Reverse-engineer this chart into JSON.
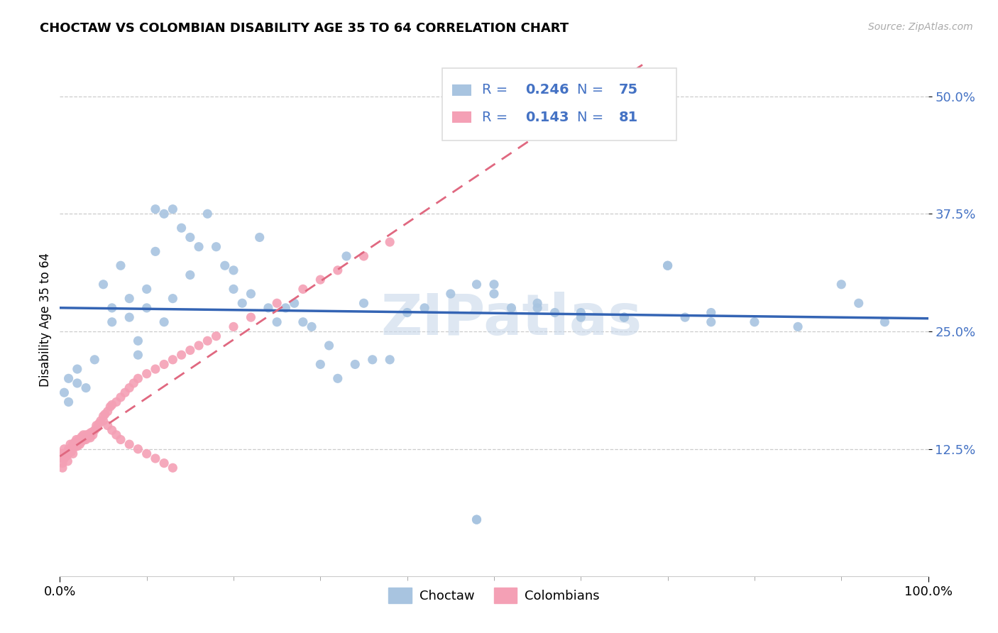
{
  "title": "CHOCTAW VS COLOMBIAN DISABILITY AGE 35 TO 64 CORRELATION CHART",
  "source": "Source: ZipAtlas.com",
  "ylabel": "Disability Age 35 to 64",
  "y_ticks": [
    0.125,
    0.25,
    0.375,
    0.5
  ],
  "y_tick_labels": [
    "12.5%",
    "25.0%",
    "37.5%",
    "50.0%"
  ],
  "x_range": [
    0.0,
    1.0
  ],
  "y_range": [
    -0.01,
    0.535
  ],
  "choctaw_R": 0.246,
  "choctaw_N": 75,
  "colombian_R": 0.143,
  "colombian_N": 81,
  "choctaw_color": "#a8c4e0",
  "colombian_color": "#f4a0b5",
  "choctaw_line_color": "#3464b4",
  "colombian_line_color": "#e06880",
  "legend_text_color": "#4472c4",
  "watermark_color": "#c8d8ea",
  "choctaw_x": [
    0.005,
    0.01,
    0.01,
    0.02,
    0.02,
    0.03,
    0.04,
    0.05,
    0.06,
    0.06,
    0.07,
    0.08,
    0.08,
    0.09,
    0.09,
    0.1,
    0.1,
    0.11,
    0.11,
    0.12,
    0.12,
    0.13,
    0.13,
    0.14,
    0.15,
    0.15,
    0.16,
    0.17,
    0.18,
    0.19,
    0.2,
    0.2,
    0.21,
    0.22,
    0.23,
    0.24,
    0.25,
    0.26,
    0.27,
    0.28,
    0.29,
    0.3,
    0.31,
    0.32,
    0.33,
    0.34,
    0.35,
    0.36,
    0.38,
    0.4,
    0.42,
    0.45,
    0.48,
    0.5,
    0.52,
    0.55,
    0.57,
    0.6,
    0.65,
    0.7,
    0.72,
    0.75,
    0.8,
    0.85,
    0.9,
    0.92,
    0.95,
    0.48,
    0.5,
    0.55,
    0.6,
    0.65,
    0.7,
    0.75,
    0.48
  ],
  "choctaw_y": [
    0.185,
    0.175,
    0.2,
    0.21,
    0.195,
    0.19,
    0.22,
    0.3,
    0.275,
    0.26,
    0.32,
    0.265,
    0.285,
    0.24,
    0.225,
    0.275,
    0.295,
    0.335,
    0.38,
    0.26,
    0.375,
    0.285,
    0.38,
    0.36,
    0.31,
    0.35,
    0.34,
    0.375,
    0.34,
    0.32,
    0.295,
    0.315,
    0.28,
    0.29,
    0.35,
    0.275,
    0.26,
    0.275,
    0.28,
    0.26,
    0.255,
    0.215,
    0.235,
    0.2,
    0.33,
    0.215,
    0.28,
    0.22,
    0.22,
    0.27,
    0.275,
    0.29,
    0.05,
    0.3,
    0.275,
    0.275,
    0.27,
    0.265,
    0.265,
    0.32,
    0.265,
    0.26,
    0.26,
    0.255,
    0.3,
    0.28,
    0.26,
    0.3,
    0.29,
    0.28,
    0.27,
    0.265,
    0.32,
    0.27,
    0.05
  ],
  "colombian_x": [
    0.003,
    0.003,
    0.003,
    0.003,
    0.005,
    0.005,
    0.005,
    0.007,
    0.008,
    0.009,
    0.01,
    0.01,
    0.012,
    0.012,
    0.013,
    0.015,
    0.015,
    0.015,
    0.017,
    0.018,
    0.019,
    0.02,
    0.02,
    0.022,
    0.023,
    0.025,
    0.025,
    0.027,
    0.028,
    0.03,
    0.03,
    0.032,
    0.033,
    0.035,
    0.035,
    0.037,
    0.038,
    0.04,
    0.042,
    0.043,
    0.045,
    0.047,
    0.05,
    0.052,
    0.055,
    0.058,
    0.06,
    0.065,
    0.07,
    0.075,
    0.08,
    0.085,
    0.09,
    0.1,
    0.11,
    0.12,
    0.13,
    0.14,
    0.15,
    0.16,
    0.17,
    0.18,
    0.2,
    0.22,
    0.25,
    0.28,
    0.3,
    0.32,
    0.35,
    0.38,
    0.05,
    0.055,
    0.06,
    0.065,
    0.07,
    0.08,
    0.09,
    0.1,
    0.11,
    0.12,
    0.13
  ],
  "colombian_y": [
    0.12,
    0.115,
    0.11,
    0.105,
    0.125,
    0.12,
    0.115,
    0.12,
    0.118,
    0.112,
    0.125,
    0.12,
    0.13,
    0.125,
    0.122,
    0.13,
    0.125,
    0.12,
    0.132,
    0.128,
    0.135,
    0.133,
    0.128,
    0.135,
    0.13,
    0.138,
    0.133,
    0.14,
    0.135,
    0.14,
    0.135,
    0.14,
    0.138,
    0.142,
    0.137,
    0.143,
    0.14,
    0.145,
    0.15,
    0.148,
    0.152,
    0.155,
    0.16,
    0.162,
    0.165,
    0.17,
    0.172,
    0.175,
    0.18,
    0.185,
    0.19,
    0.195,
    0.2,
    0.205,
    0.21,
    0.215,
    0.22,
    0.225,
    0.23,
    0.235,
    0.24,
    0.245,
    0.255,
    0.265,
    0.28,
    0.295,
    0.305,
    0.315,
    0.33,
    0.345,
    0.155,
    0.15,
    0.145,
    0.14,
    0.135,
    0.13,
    0.125,
    0.12,
    0.115,
    0.11,
    0.105
  ]
}
